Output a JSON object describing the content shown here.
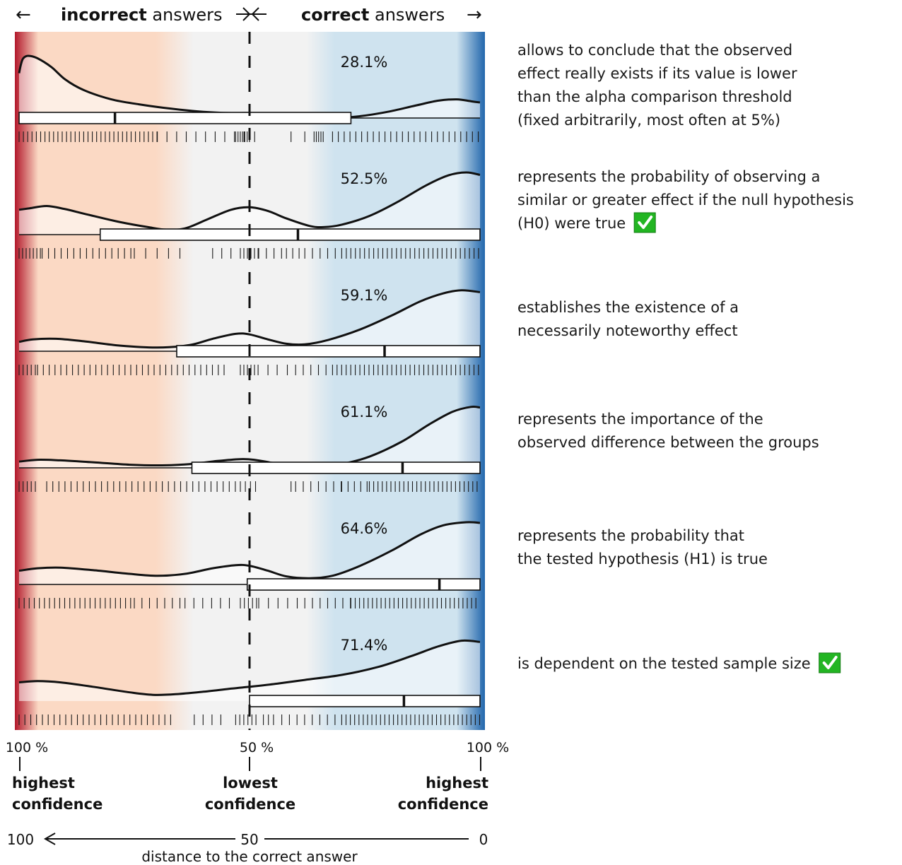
{
  "header": {
    "left_arrow": "←",
    "incorrect_bold": "incorrect",
    "incorrect_rest": " answers",
    "mid_symbol": "⟩⟨",
    "correct_bold": "correct",
    "correct_rest": " answers",
    "right_arrow": "→"
  },
  "axis": {
    "left_pct": "100 %",
    "mid_pct": "50 %",
    "right_pct": "100 %",
    "left_conf_1": "highest",
    "left_conf_2": "confidence",
    "mid_conf_1": "lowest",
    "mid_conf_2": "confidence",
    "right_conf_1": "highest",
    "right_conf_2": "confidence",
    "dist_left": "100",
    "dist_mid": "50",
    "dist_right": "0",
    "dist_label": "distance to the correct answer"
  },
  "colors": {
    "incorrect_strong": "#b2182b",
    "incorrect_soft": "#fbd9c4",
    "neutral": "#f2f2f2",
    "correct_soft": "#cfe3ef",
    "correct_strong": "#2166ac",
    "check_green": "#22b522"
  },
  "chart_data": {
    "type": "violin-density-with-boxplot-and-rug",
    "x_axis": "distance to the correct answer",
    "xlim": [
      100,
      0
    ],
    "rows": [
      {
        "statement": [
          "allows to conclude that the observed",
          "effect really exists if its value is lower",
          "than the alpha comparison threshold",
          "(fixed arbitrarily, most often at 5%)"
        ],
        "correct": false,
        "percent_label": "28.1%",
        "density": [
          [
            0,
            0.72
          ],
          [
            0.4,
            0.86
          ],
          [
            0.9,
            0.96
          ],
          [
            2,
            1.0
          ],
          [
            4,
            0.96
          ],
          [
            7,
            0.82
          ],
          [
            10,
            0.62
          ],
          [
            14,
            0.45
          ],
          [
            20,
            0.3
          ],
          [
            26,
            0.22
          ],
          [
            33,
            0.15
          ],
          [
            40,
            0.1
          ],
          [
            46,
            0.08
          ],
          [
            50,
            0.08
          ],
          [
            56,
            0.06
          ],
          [
            62,
            0.01
          ],
          [
            68,
            0.0
          ],
          [
            74,
            0.03
          ],
          [
            80,
            0.1
          ],
          [
            86,
            0.2
          ],
          [
            91,
            0.28
          ],
          [
            95,
            0.3
          ],
          [
            98,
            0.27
          ],
          [
            100,
            0.25
          ]
        ],
        "box": {
          "min": 0,
          "q1": 0,
          "median": 20.8,
          "q3": 72,
          "max": 100
        },
        "rug": [
          [
            0,
            30,
            1.7
          ],
          [
            30,
            49,
            3.8
          ],
          [
            47,
            50,
            0.9
          ],
          [
            50,
            52,
            2.0
          ],
          [
            59,
            60
          ],
          [
            62,
            63
          ],
          [
            64,
            66,
            0.9
          ],
          [
            68,
            100,
            2.3
          ]
        ]
      },
      {
        "statement": [
          "represents the probability of observing a",
          "similar or greater effect if the null hypothesis",
          "(H0) were true"
        ],
        "correct": true,
        "percent_label": "52.5%",
        "density": [
          [
            0,
            0.4
          ],
          [
            2,
            0.42
          ],
          [
            6,
            0.46
          ],
          [
            10,
            0.41
          ],
          [
            15,
            0.32
          ],
          [
            22,
            0.2
          ],
          [
            28,
            0.12
          ],
          [
            32,
            0.08
          ],
          [
            36,
            0.1
          ],
          [
            41,
            0.25
          ],
          [
            46,
            0.4
          ],
          [
            50,
            0.44
          ],
          [
            54,
            0.38
          ],
          [
            58,
            0.26
          ],
          [
            63,
            0.14
          ],
          [
            66,
            0.12
          ],
          [
            70,
            0.16
          ],
          [
            76,
            0.3
          ],
          [
            82,
            0.52
          ],
          [
            88,
            0.78
          ],
          [
            93,
            0.95
          ],
          [
            97,
            1.0
          ],
          [
            100,
            0.96
          ]
        ],
        "box": {
          "min": 0,
          "q1": 17.6,
          "median": 60.5,
          "q3": 100,
          "max": 100
        },
        "rug": [
          [
            0,
            5,
            1.4
          ],
          [
            5,
            25,
            2.5
          ],
          [
            25,
            37,
            4.5
          ],
          [
            42,
            46,
            3.6
          ],
          [
            48,
            52,
            1.4
          ],
          [
            52,
            58,
            3.0
          ],
          [
            58,
            62,
            2.5
          ],
          [
            62,
            70,
            3.0
          ],
          [
            70,
            100,
            1.8
          ]
        ]
      },
      {
        "statement": [
          "establishes the existence of a",
          "necessarily noteworthy effect"
        ],
        "correct": false,
        "percent_label": "59.1%",
        "density": [
          [
            0,
            0.15
          ],
          [
            3,
            0.19
          ],
          [
            8,
            0.2
          ],
          [
            14,
            0.16
          ],
          [
            22,
            0.09
          ],
          [
            30,
            0.06
          ],
          [
            37,
            0.1
          ],
          [
            42,
            0.2
          ],
          [
            47,
            0.28
          ],
          [
            50,
            0.27
          ],
          [
            54,
            0.19
          ],
          [
            58,
            0.12
          ],
          [
            62,
            0.11
          ],
          [
            67,
            0.18
          ],
          [
            74,
            0.35
          ],
          [
            81,
            0.58
          ],
          [
            87,
            0.8
          ],
          [
            92,
            0.93
          ],
          [
            96,
            0.98
          ],
          [
            100,
            0.95
          ]
        ],
        "box": {
          "min": 0,
          "q1": 34.2,
          "median": 79.3,
          "q3": 100,
          "max": 100
        },
        "rug": [
          [
            0,
            4,
            1.6
          ],
          [
            4,
            45,
            2.3
          ],
          [
            48,
            52,
            1.4
          ],
          [
            54,
            56
          ],
          [
            56,
            60,
            4.0
          ],
          [
            60,
            68,
            3.0
          ],
          [
            68,
            100,
            1.8
          ]
        ]
      },
      {
        "statement": [
          "represents the importance of the",
          "observed difference between the groups"
        ],
        "correct": false,
        "percent_label": "61.1%",
        "density": [
          [
            0,
            0.1
          ],
          [
            4,
            0.13
          ],
          [
            9,
            0.12
          ],
          [
            16,
            0.09
          ],
          [
            24,
            0.05
          ],
          [
            31,
            0.04
          ],
          [
            37,
            0.06
          ],
          [
            43,
            0.11
          ],
          [
            48,
            0.14
          ],
          [
            51,
            0.13
          ],
          [
            55,
            0.08
          ],
          [
            60,
            0.03
          ],
          [
            65,
            0.02
          ],
          [
            70,
            0.06
          ],
          [
            76,
            0.18
          ],
          [
            83,
            0.42
          ],
          [
            89,
            0.7
          ],
          [
            94,
            0.9
          ],
          [
            98,
            0.98
          ],
          [
            100,
            0.97
          ]
        ],
        "box": {
          "min": 0,
          "q1": 37.5,
          "median": 83.2,
          "q3": 100,
          "max": 100
        },
        "rug": [
          [
            0,
            4,
            1.6
          ],
          [
            6,
            47,
            2.4
          ],
          [
            48,
            52,
            2.0
          ],
          [
            59,
            60
          ],
          [
            60,
            70,
            3.0
          ],
          [
            70,
            76,
            2.5
          ],
          [
            76,
            100,
            1.7
          ]
        ]
      },
      {
        "statement": [
          "represents the probability that",
          "the tested hypothesis (H1) is true"
        ],
        "correct": false,
        "percent_label": "64.6%",
        "density": [
          [
            0,
            0.22
          ],
          [
            4,
            0.26
          ],
          [
            9,
            0.27
          ],
          [
            16,
            0.23
          ],
          [
            24,
            0.17
          ],
          [
            30,
            0.14
          ],
          [
            36,
            0.17
          ],
          [
            42,
            0.26
          ],
          [
            47,
            0.31
          ],
          [
            50,
            0.3
          ],
          [
            54,
            0.22
          ],
          [
            58,
            0.13
          ],
          [
            63,
            0.1
          ],
          [
            68,
            0.14
          ],
          [
            74,
            0.3
          ],
          [
            81,
            0.55
          ],
          [
            87,
            0.8
          ],
          [
            92,
            0.95
          ],
          [
            97,
            1.0
          ],
          [
            100,
            0.99
          ]
        ],
        "box": {
          "min": 0,
          "q1": 49.5,
          "median": 91.2,
          "q3": 100,
          "max": 100
        },
        "rug": [
          [
            0,
            25,
            2.0
          ],
          [
            25,
            36,
            3.0
          ],
          [
            36,
            47,
            3.5
          ],
          [
            48,
            52,
            1.6
          ],
          [
            52,
            62,
            3.8
          ],
          [
            62,
            72,
            3.0
          ],
          [
            72,
            100,
            1.7
          ]
        ]
      },
      {
        "statement": [
          "is dependent on the tested sample size"
        ],
        "correct": true,
        "percent_label": "71.4%",
        "density": [
          [
            0,
            0.3
          ],
          [
            4,
            0.32
          ],
          [
            9,
            0.3
          ],
          [
            16,
            0.23
          ],
          [
            24,
            0.14
          ],
          [
            29,
            0.1
          ],
          [
            34,
            0.11
          ],
          [
            40,
            0.15
          ],
          [
            46,
            0.2
          ],
          [
            50,
            0.23
          ],
          [
            56,
            0.28
          ],
          [
            62,
            0.34
          ],
          [
            70,
            0.42
          ],
          [
            78,
            0.55
          ],
          [
            85,
            0.72
          ],
          [
            91,
            0.88
          ],
          [
            96,
            0.97
          ],
          [
            100,
            0.95
          ]
        ],
        "box": {
          "min": 50,
          "q1": 50,
          "median": 83.5,
          "q3": 100,
          "max": 100
        },
        "rug": [
          [
            0,
            34,
            2.3
          ],
          [
            38,
            44,
            3.5
          ],
          [
            47,
            52,
            1.6
          ],
          [
            53,
            56,
            2.0
          ],
          [
            57,
            70,
            3.0
          ],
          [
            70,
            100,
            1.7
          ]
        ]
      }
    ]
  }
}
